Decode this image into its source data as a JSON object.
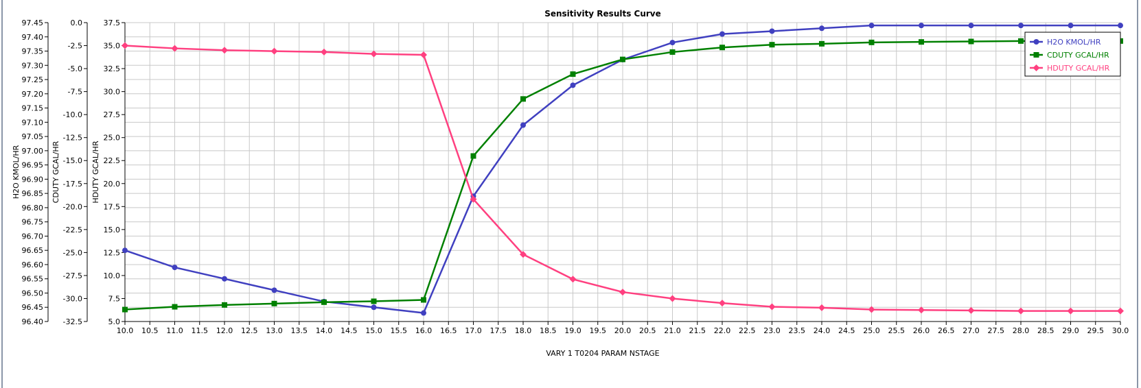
{
  "chart_data": {
    "type": "line",
    "title": "Sensitivity Results Curve",
    "xlabel": "VARY   1 T0204 PARAM NSTAGE",
    "xlim": [
      10.0,
      30.0
    ],
    "x_tick_step": 0.5,
    "grid": true,
    "legend_position": "top-right",
    "x": [
      10,
      11,
      12,
      13,
      14,
      15,
      16,
      17,
      18,
      19,
      20,
      21,
      22,
      23,
      24,
      25,
      26,
      27,
      28,
      29,
      30
    ],
    "axes": [
      {
        "id": "h2o",
        "label": "H2O KMOL/HR",
        "ylim": [
          96.4,
          97.45
        ],
        "step": 0.05,
        "decimals": 2
      },
      {
        "id": "cduty",
        "label": "CDUTY GCAL/HR",
        "ylim": [
          -32.5,
          0.0
        ],
        "step": 2.5,
        "decimals": 1
      },
      {
        "id": "hduty",
        "label": "HDUTY GCAL/HR",
        "ylim": [
          5.0,
          37.5
        ],
        "step": 2.5,
        "decimals": 1
      }
    ],
    "series": [
      {
        "name": "H2O KMOL/HR",
        "axis": "h2o",
        "color": "#4040c0",
        "marker": "circle",
        "values": [
          96.65,
          96.59,
          96.55,
          96.51,
          96.47,
          96.45,
          96.43,
          96.84,
          97.09,
          97.23,
          97.32,
          97.38,
          97.41,
          97.42,
          97.43,
          97.44,
          97.44,
          97.44,
          97.44,
          97.44,
          97.44
        ]
      },
      {
        "name": "CDUTY GCAL/HR",
        "axis": "cduty",
        "color": "#008000",
        "marker": "square",
        "values": [
          -31.2,
          -30.9,
          -30.7,
          -30.55,
          -30.4,
          -30.3,
          -30.15,
          -14.5,
          -8.3,
          -5.6,
          -4.0,
          -3.2,
          -2.7,
          -2.4,
          -2.3,
          -2.15,
          -2.1,
          -2.05,
          -2.0,
          -2.0,
          -2.0
        ]
      },
      {
        "name": "HDUTY GCAL/HR",
        "axis": "hduty",
        "color": "#ff4080",
        "marker": "diamond",
        "values": [
          35.0,
          34.7,
          34.5,
          34.4,
          34.3,
          34.1,
          34.0,
          18.3,
          12.3,
          9.6,
          8.2,
          7.5,
          7.0,
          6.6,
          6.5,
          6.3,
          6.25,
          6.2,
          6.15,
          6.15,
          6.15
        ]
      }
    ]
  }
}
